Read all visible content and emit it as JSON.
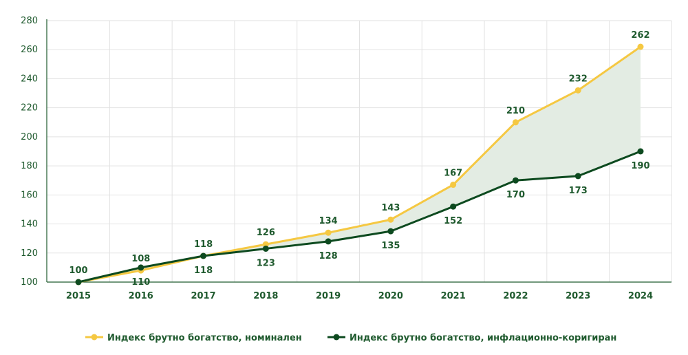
{
  "chart_data": {
    "type": "line",
    "title": "",
    "xlabel": "",
    "ylabel": "",
    "categories": [
      "2015",
      "2016",
      "2017",
      "2018",
      "2019",
      "2020",
      "2021",
      "2022",
      "2023",
      "2024"
    ],
    "series": [
      {
        "name": "Индекс брутно богатство, номинален",
        "values": [
          100,
          108,
          118,
          126,
          134,
          143,
          167,
          210,
          232,
          262
        ],
        "color": "#f5c842",
        "label_position": "above"
      },
      {
        "name": "Индекс брутно богатство, инфлационно-коригиран",
        "values": [
          100,
          110,
          118,
          123,
          128,
          135,
          152,
          170,
          173,
          190
        ],
        "color": "#0d4a1f",
        "label_position": "below"
      }
    ],
    "y_ticks": [
      "100",
      "120",
      "140",
      "160",
      "180",
      "200",
      "220",
      "240",
      "260",
      "280"
    ],
    "ylim": [
      100,
      280
    ],
    "grid": true,
    "fill_between": {
      "color": "#e3ece3"
    },
    "legend_placement": "bottom-center",
    "axis_color": "#1f5a2e",
    "grid_color": "#e2e2e2"
  }
}
